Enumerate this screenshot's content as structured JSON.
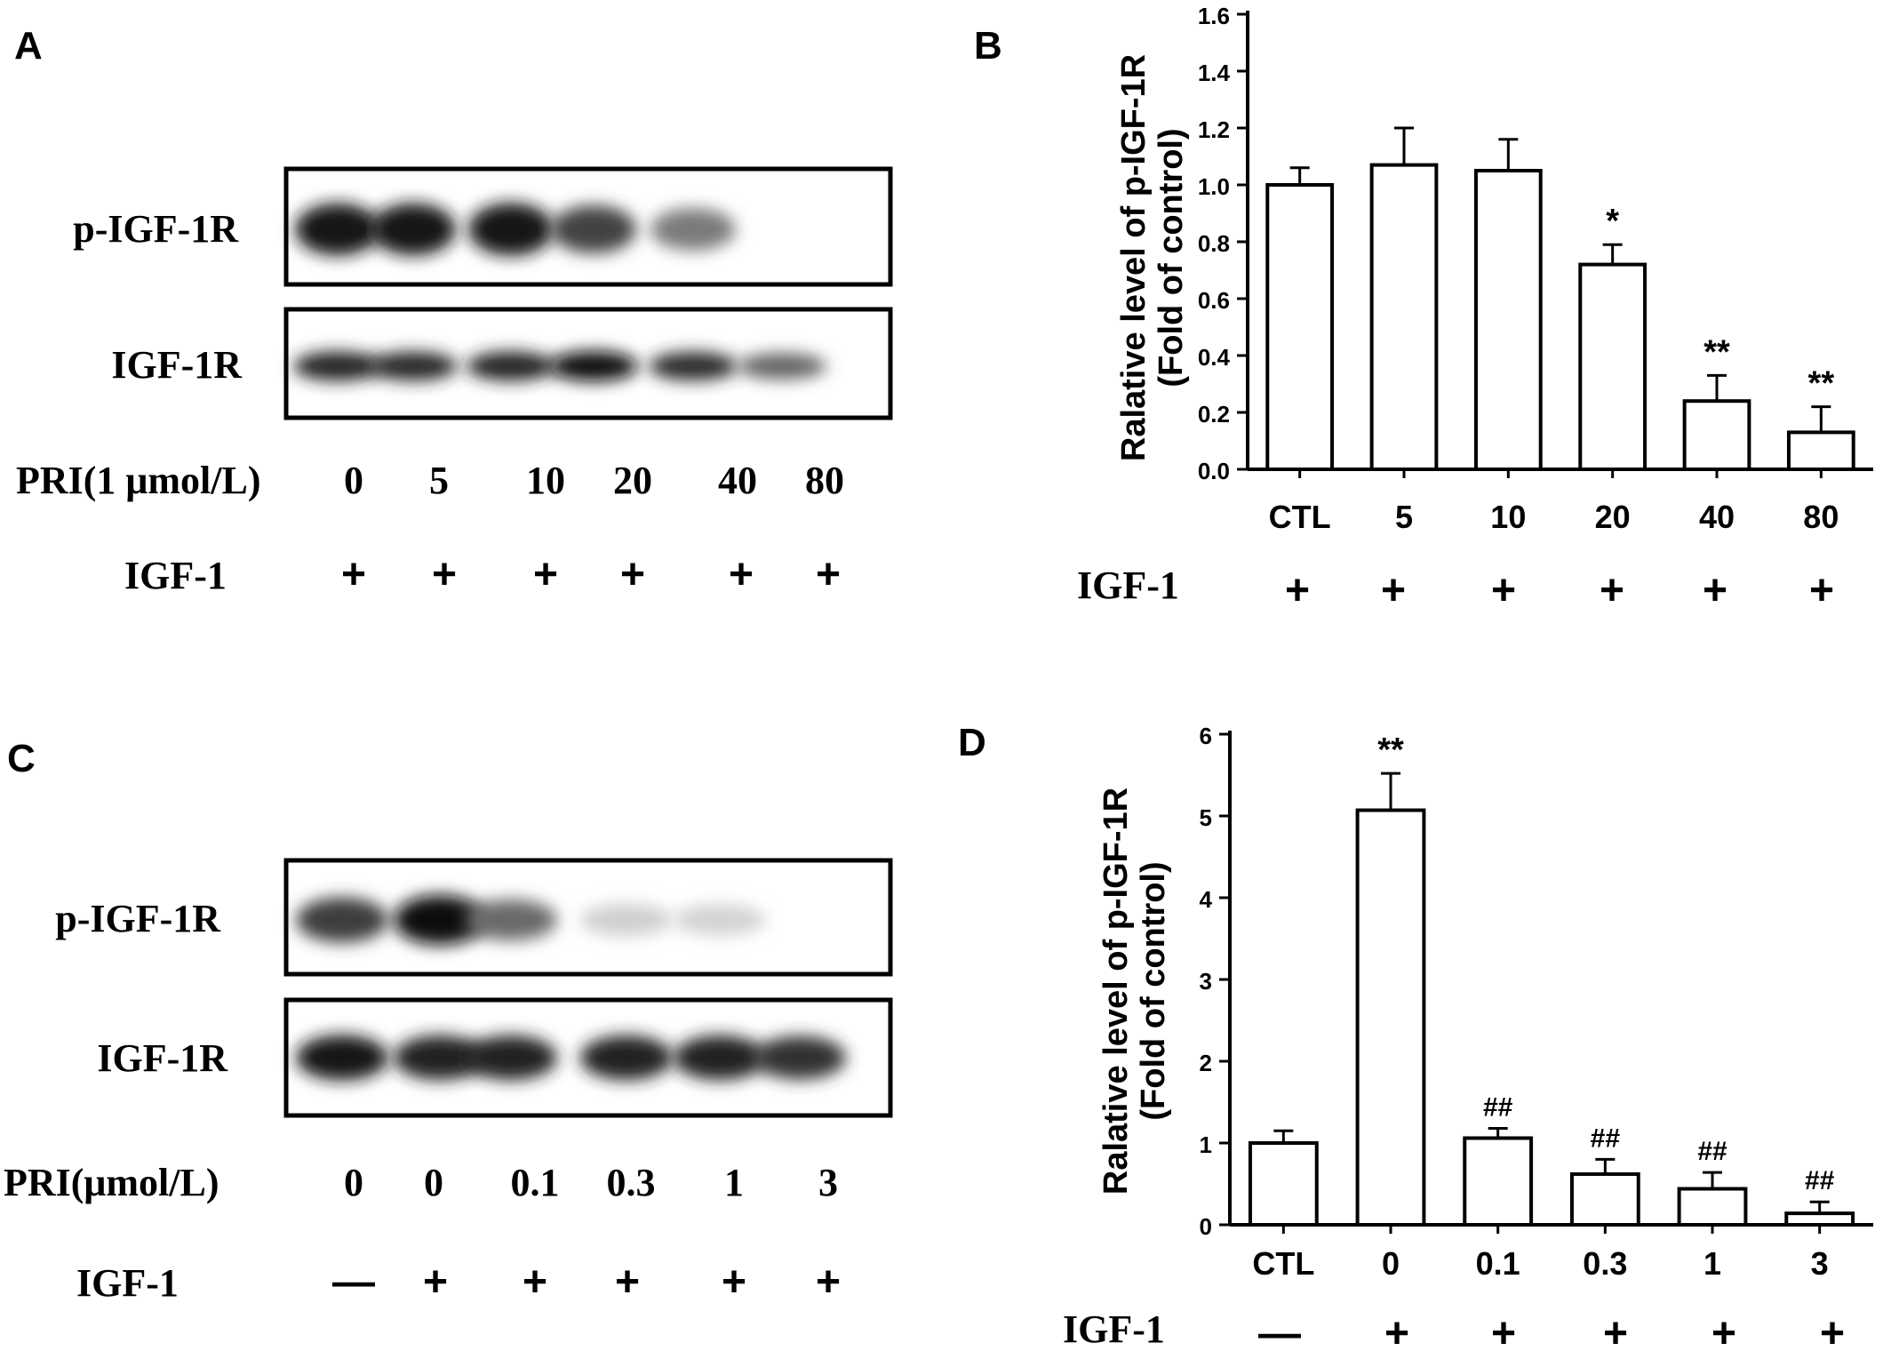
{
  "panels": {
    "a": "A",
    "b": "B",
    "c": "C",
    "d": "D"
  },
  "blots": {
    "a": {
      "rows": [
        "p-IGF-1R",
        "IGF-1R"
      ],
      "dose_label": "PRI(1 μmol/L)",
      "doses": [
        "0",
        "5",
        "10",
        "20",
        "40",
        "80"
      ],
      "igf_label": "IGF-1",
      "igf": [
        "+",
        "+",
        "+",
        "+",
        "+",
        "+"
      ],
      "band_intensity": {
        "p-IGF-1R": [
          0.95,
          0.95,
          0.98,
          0.78,
          0.55,
          0.0
        ],
        "IGF-1R": [
          0.92,
          0.9,
          0.92,
          1.0,
          0.88,
          0.65
        ]
      }
    },
    "c": {
      "rows": [
        "p-IGF-1R",
        "IGF-1R"
      ],
      "dose_label": "PRI(μmol/L)",
      "doses": [
        "0",
        "0",
        "0.1",
        "0.3",
        "1",
        "3"
      ],
      "igf_label": "IGF-1",
      "igf": [
        "—",
        "+",
        "+",
        "+",
        "+",
        "+"
      ],
      "band_intensity": {
        "p-IGF-1R": [
          0.8,
          1.0,
          0.62,
          0.2,
          0.18,
          0.0
        ],
        "IGF-1R": [
          0.95,
          0.92,
          0.92,
          0.92,
          0.92,
          0.85
        ]
      }
    }
  },
  "chart_data": [
    {
      "type": "bar",
      "panel": "B",
      "categories": [
        "CTL",
        "5",
        "10",
        "20",
        "40",
        "80"
      ],
      "values": [
        1.0,
        1.07,
        1.05,
        0.72,
        0.24,
        0.13
      ],
      "errors": [
        0.06,
        0.13,
        0.11,
        0.07,
        0.09,
        0.09
      ],
      "annotations": [
        "",
        "",
        "",
        "*",
        "**",
        "**"
      ],
      "ylabel": "Ralative level of p-IGF-1R",
      "ylabel2": "(Fold of control)",
      "ylim": [
        0,
        1.6
      ],
      "yticks": [
        "0.0",
        "0.2",
        "0.4",
        "0.6",
        "0.8",
        "1.0",
        "1.2",
        "1.4",
        "1.6"
      ],
      "igf_label": "IGF-1",
      "igf": [
        "+",
        "+",
        "+",
        "+",
        "+",
        "+"
      ]
    },
    {
      "type": "bar",
      "panel": "D",
      "categories": [
        "CTL",
        "0",
        "0.1",
        "0.3",
        "1",
        "3"
      ],
      "values": [
        1.0,
        5.07,
        1.06,
        0.62,
        0.44,
        0.14
      ],
      "errors": [
        0.15,
        0.45,
        0.12,
        0.18,
        0.2,
        0.14
      ],
      "annotations": [
        "",
        "**",
        "##",
        "##",
        "##",
        "##"
      ],
      "ylabel": "Ralative level of p-IGF-1R",
      "ylabel2": "(Fold of control)",
      "ylim": [
        0,
        6
      ],
      "yticks": [
        "0",
        "1",
        "2",
        "3",
        "4",
        "5",
        "6"
      ],
      "igf_label": "IGF-1",
      "igf": [
        "—",
        "+",
        "+",
        "+",
        "+",
        "+"
      ]
    }
  ]
}
